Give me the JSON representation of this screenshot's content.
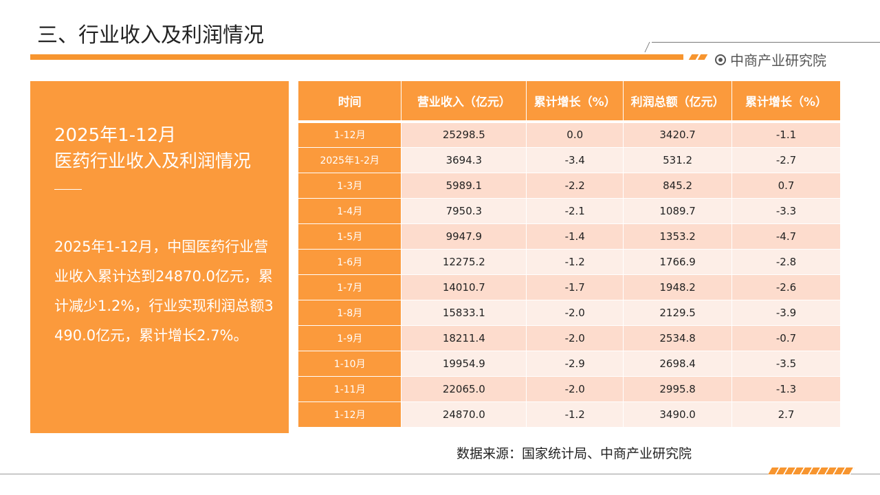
{
  "header": {
    "title": "三、行业收入及利润情况",
    "brand": "中商产业研究院"
  },
  "colors": {
    "accent": "#fb9a3c",
    "row_odd": "#fddccd",
    "row_even": "#fdeee7"
  },
  "panel": {
    "title_line1": "2025年1-12月",
    "title_line2": "医药行业收入及利润情况",
    "body": "2025年1-12月，中国医药行业营业收入累计达到24870.0亿元，累计减少1.2%，行业实现利润总额3490.0亿元，累计增长2.7%。"
  },
  "table": {
    "headers": [
      "时间",
      "营业收入（亿元）",
      "累计增长（%）",
      "利润总额（亿元）",
      "累计增长（%）"
    ],
    "rows": [
      [
        "1-12月",
        "25298.5",
        "0.0",
        "3420.7",
        "-1.1"
      ],
      [
        "2025年1-2月",
        "3694.3",
        "-3.4",
        "531.2",
        "-2.7"
      ],
      [
        "1-3月",
        "5989.1",
        "-2.2",
        "845.2",
        "0.7"
      ],
      [
        "1-4月",
        "7950.3",
        "-2.1",
        "1089.7",
        "-3.3"
      ],
      [
        "1-5月",
        "9947.9",
        "-1.4",
        "1353.2",
        "-4.7"
      ],
      [
        "1-6月",
        "12275.2",
        "-1.2",
        "1766.9",
        "-2.8"
      ],
      [
        "1-7月",
        "14010.7",
        "-1.7",
        "1948.2",
        "-2.6"
      ],
      [
        "1-8月",
        "15833.1",
        "-2.0",
        "2129.5",
        "-3.9"
      ],
      [
        "1-9月",
        "18211.4",
        "-2.0",
        "2534.8",
        "-0.7"
      ],
      [
        "1-10月",
        "19954.9",
        "-2.9",
        "2698.4",
        "-3.5"
      ],
      [
        "1-11月",
        "22065.0",
        "-2.0",
        "2995.8",
        "-1.3"
      ],
      [
        "1-12月",
        "24870.0",
        "-1.2",
        "3490.0",
        "2.7"
      ]
    ]
  },
  "source": "数据来源：国家统计局、中商产业研究院"
}
